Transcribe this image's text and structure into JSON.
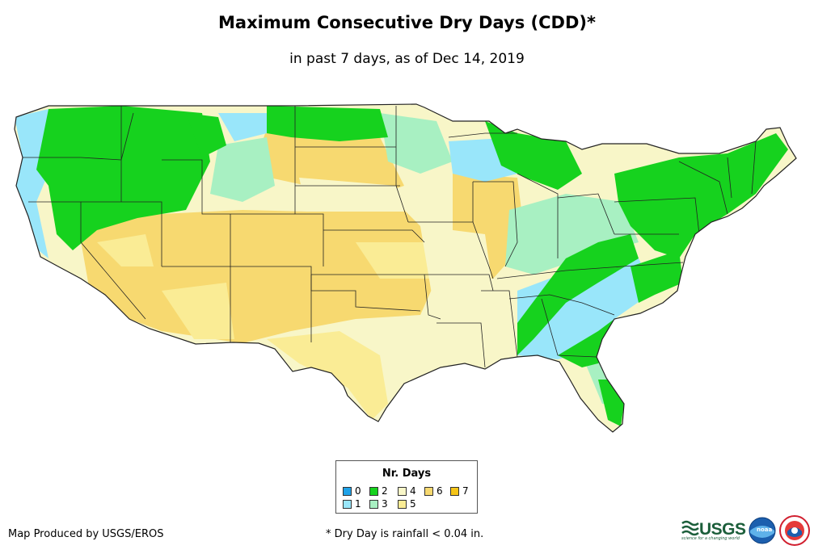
{
  "title": "Maximum Consecutive Dry Days (CDD)*",
  "subtitle": "in past 7 days, as of Dec 14, 2019",
  "legend": {
    "title": "Nr. Days",
    "items": [
      {
        "label": "0",
        "color": "#1fa2e8"
      },
      {
        "label": "1",
        "color": "#99e6fa"
      },
      {
        "label": "2",
        "color": "#16d21e"
      },
      {
        "label": "3",
        "color": "#a8f0c2"
      },
      {
        "label": "4",
        "color": "#f8f6c8"
      },
      {
        "label": "5",
        "color": "#faec95"
      },
      {
        "label": "6",
        "color": "#f7d970"
      },
      {
        "label": "7",
        "color": "#f5c518"
      }
    ]
  },
  "footer": {
    "credit": "Map Produced by USGS/EROS",
    "footnote": "* Dry Day is rainfall < 0.04 in."
  },
  "logos": {
    "usgs": "USGS",
    "usgs_tagline": "science for a changing world",
    "noaa": "noaa"
  }
}
